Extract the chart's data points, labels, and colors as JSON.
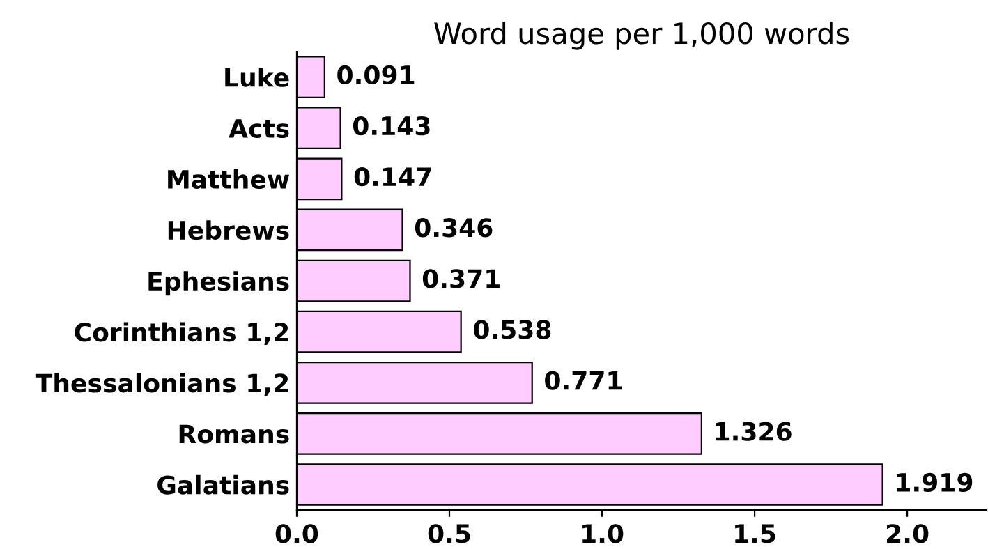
{
  "chart_data": {
    "type": "bar",
    "orientation": "horizontal",
    "title": "Word usage per 1,000 words",
    "categories": [
      "Luke",
      "Acts",
      "Matthew",
      "Hebrews",
      "Ephesians",
      "Corinthians 1,2",
      "Thessalonians 1,2",
      "Romans",
      "Galatians"
    ],
    "values": [
      0.091,
      0.143,
      0.147,
      0.346,
      0.371,
      0.538,
      0.771,
      1.326,
      1.919
    ],
    "color": "#ffccff",
    "xlim": [
      0,
      2.26
    ],
    "xticks": [
      {
        "value": 0,
        "label": "0.0"
      },
      {
        "value": 0.5,
        "label": "0.5"
      },
      {
        "value": 1,
        "label": "1.0"
      },
      {
        "value": 1.5,
        "label": "1.5"
      },
      {
        "value": 2,
        "label": "2.0"
      }
    ],
    "data_labels": true,
    "grid": false
  }
}
